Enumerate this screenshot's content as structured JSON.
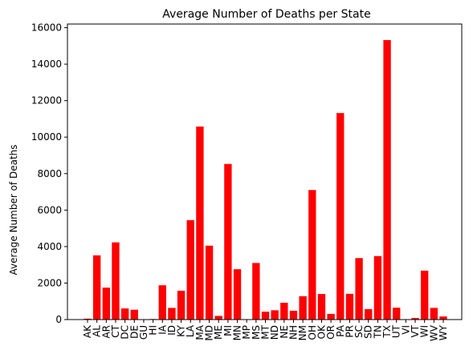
{
  "chart_data": {
    "type": "bar",
    "title": "Average Number of Deaths per State",
    "xlabel": "",
    "ylabel": "Average Number of Deaths",
    "ylim": [
      0,
      16200
    ],
    "yticks": [
      0,
      2000,
      4000,
      6000,
      8000,
      10000,
      12000,
      14000,
      16000
    ],
    "grid": false,
    "bar_color": "#ff0000",
    "categories": [
      "AK",
      "AL",
      "AR",
      "CT",
      "DC",
      "DE",
      "GU",
      "HI",
      "IA",
      "ID",
      "KY",
      "LA",
      "MA",
      "MD",
      "ME",
      "MI",
      "MN",
      "MP",
      "MS",
      "MT",
      "ND",
      "NE",
      "NH",
      "NM",
      "OH",
      "OK",
      "OR",
      "PA",
      "PR",
      "SC",
      "SD",
      "TN",
      "TX",
      "UT",
      "VI",
      "VT",
      "WI",
      "WV",
      "WY"
    ],
    "values": [
      50,
      3520,
      1750,
      4230,
      610,
      540,
      20,
      30,
      1880,
      640,
      1580,
      5450,
      10580,
      4050,
      200,
      8530,
      2760,
      10,
      3100,
      430,
      510,
      920,
      480,
      1280,
      7100,
      1400,
      310,
      11320,
      1410,
      3370,
      570,
      3480,
      15320,
      650,
      10,
      90,
      2680,
      640,
      170
    ]
  }
}
